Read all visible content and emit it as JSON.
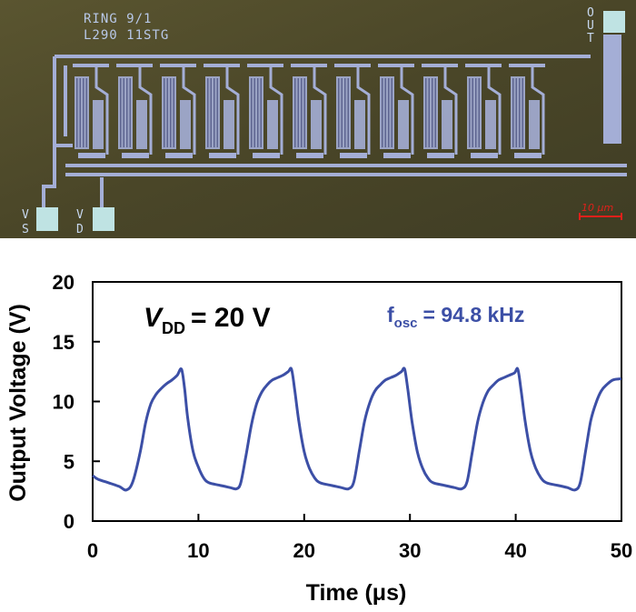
{
  "micrograph": {
    "label_line1": "RING  9/1",
    "label_line2": "L290 11STG",
    "pad_out": [
      "O",
      "U",
      "T"
    ],
    "pad_vs": [
      "V",
      "S"
    ],
    "pad_vd": [
      "V",
      "D"
    ],
    "scale_bar": "10 μm",
    "stage_count": 11,
    "colors": {
      "substrate": "#4d4a2c",
      "metal": "#a4aed6",
      "pad": "#bfe3e3",
      "scale": "#e0201a"
    }
  },
  "chart_data": {
    "type": "line",
    "xlabel": "Time (μs)",
    "ylabel": "Output Voltage (V)",
    "xlim": [
      0,
      50
    ],
    "ylim": [
      0,
      20
    ],
    "xticks": [
      "0",
      "10",
      "20",
      "30",
      "40",
      "50"
    ],
    "yticks": [
      "0",
      "5",
      "10",
      "15",
      "20"
    ],
    "grid": false,
    "annotations": {
      "vdd_main": "V",
      "vdd_sub": "DD",
      "vdd_value": "= 20 V",
      "fosc_main": "f",
      "fosc_sub": "osc",
      "fosc_value": "= 94.8 kHz"
    },
    "series": [
      {
        "color": "#3c4fa6",
        "x": [
          0,
          0.5,
          1.5,
          2.5,
          3.2,
          3.8,
          4.5,
          5.0,
          5.5,
          6.0,
          6.5,
          7.0,
          7.5,
          8.0,
          8.4,
          8.7,
          9.0,
          9.5,
          10.0,
          10.5,
          11.0,
          12.0,
          13.0,
          13.6,
          14.0,
          14.5,
          15.0,
          15.5,
          16.0,
          16.5,
          17.0,
          17.5,
          18.0,
          18.5,
          18.8,
          19.1,
          19.5,
          20.0,
          20.5,
          21.0,
          21.5,
          22.5,
          23.5,
          24.2,
          24.7,
          25.2,
          25.7,
          26.2,
          26.7,
          27.2,
          27.7,
          28.2,
          28.7,
          29.2,
          29.5,
          29.8,
          30.2,
          30.7,
          31.2,
          31.7,
          32.2,
          33.2,
          34.2,
          34.9,
          35.4,
          35.9,
          36.4,
          36.9,
          37.4,
          37.9,
          38.4,
          38.9,
          39.4,
          39.9,
          40.2,
          40.5,
          40.9,
          41.4,
          41.9,
          42.4,
          42.9,
          43.9,
          44.9,
          45.6,
          46.1,
          46.6,
          47.1,
          47.6,
          48.1,
          48.6,
          49.2,
          50.0
        ],
        "y": [
          3.8,
          3.5,
          3.2,
          2.9,
          2.6,
          3.3,
          5.8,
          8.2,
          9.8,
          10.6,
          11.1,
          11.5,
          11.8,
          12.2,
          12.7,
          11.0,
          8.5,
          5.8,
          4.5,
          3.6,
          3.2,
          3.0,
          2.8,
          2.7,
          3.2,
          5.5,
          8.0,
          9.8,
          10.8,
          11.4,
          11.8,
          12.0,
          12.2,
          12.5,
          12.7,
          11.0,
          8.3,
          5.8,
          4.4,
          3.6,
          3.2,
          3.0,
          2.8,
          2.7,
          3.3,
          5.8,
          8.3,
          9.9,
          10.9,
          11.4,
          11.8,
          12.0,
          12.2,
          12.5,
          12.7,
          11.0,
          8.3,
          5.8,
          4.4,
          3.6,
          3.2,
          3.0,
          2.8,
          2.7,
          3.3,
          5.8,
          8.3,
          9.9,
          10.9,
          11.4,
          11.8,
          12.0,
          12.2,
          12.4,
          12.7,
          11.0,
          8.3,
          5.8,
          4.4,
          3.6,
          3.2,
          3.0,
          2.8,
          2.6,
          3.2,
          5.8,
          8.4,
          9.9,
          10.9,
          11.4,
          11.8,
          11.9
        ]
      }
    ]
  }
}
